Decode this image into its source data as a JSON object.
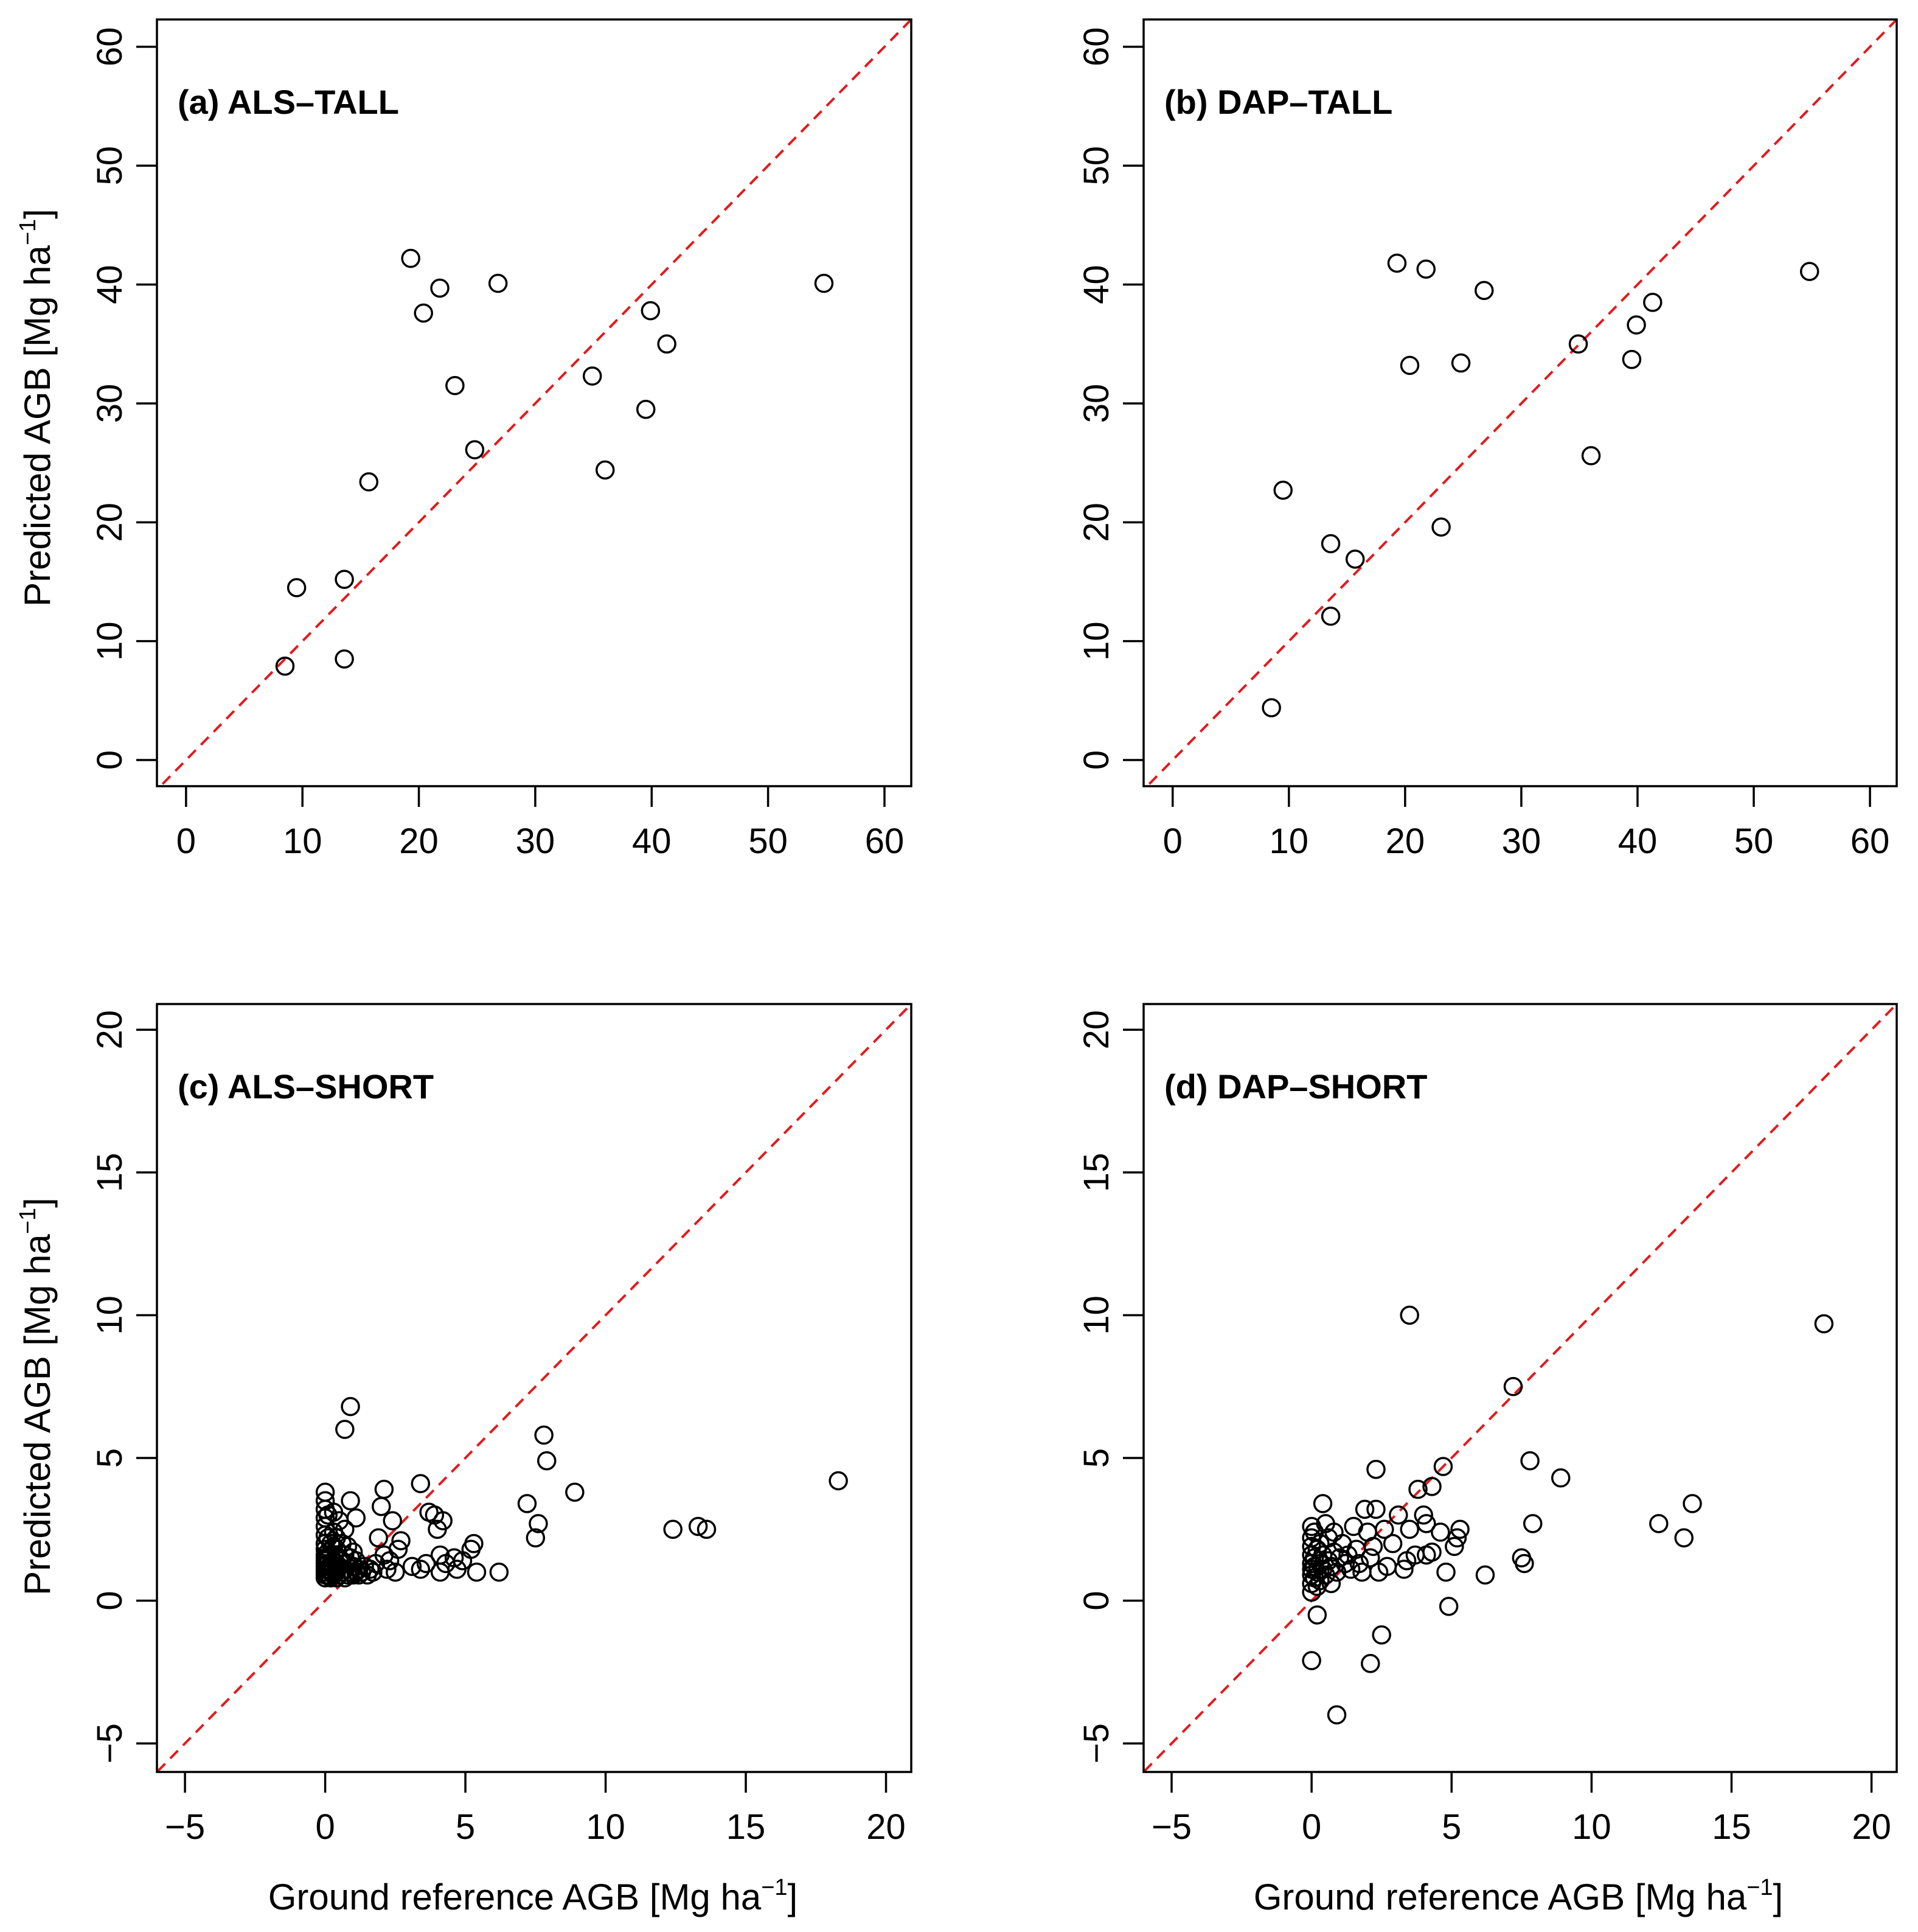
{
  "chart_data": [
    {
      "id": "a",
      "type": "scatter",
      "title": "(a) ALS–TALL",
      "xlim": [
        -2.5,
        62.3
      ],
      "ylim": [
        -2.2,
        62.3
      ],
      "xticks": [
        0,
        10,
        20,
        30,
        40,
        50,
        60
      ],
      "yticks": [
        0,
        10,
        20,
        30,
        40,
        50,
        60
      ],
      "reference_line": "1:1",
      "points": [
        [
          8.5,
          7.9
        ],
        [
          9.5,
          14.5
        ],
        [
          13.6,
          15.2
        ],
        [
          13.6,
          8.5
        ],
        [
          15.7,
          23.4
        ],
        [
          19.3,
          42.2
        ],
        [
          20.4,
          37.6
        ],
        [
          21.8,
          39.7
        ],
        [
          23.1,
          31.5
        ],
        [
          24.8,
          26.1
        ],
        [
          26.8,
          40.1
        ],
        [
          34.9,
          32.3
        ],
        [
          36.0,
          24.4
        ],
        [
          39.5,
          29.5
        ],
        [
          39.9,
          37.8
        ],
        [
          41.3,
          35.0
        ],
        [
          54.8,
          40.1
        ]
      ]
    },
    {
      "id": "b",
      "type": "scatter",
      "title": "(b) DAP–TALL",
      "xlim": [
        -2.5,
        62.3
      ],
      "ylim": [
        -2.2,
        62.3
      ],
      "xticks": [
        0,
        10,
        20,
        30,
        40,
        50,
        60
      ],
      "yticks": [
        0,
        10,
        20,
        30,
        40,
        50,
        60
      ],
      "reference_line": "1:1",
      "points": [
        [
          8.5,
          4.4
        ],
        [
          9.5,
          22.7
        ],
        [
          13.6,
          18.2
        ],
        [
          13.6,
          12.1
        ],
        [
          15.7,
          16.9
        ],
        [
          19.3,
          41.8
        ],
        [
          20.4,
          33.2
        ],
        [
          21.8,
          41.3
        ],
        [
          23.1,
          19.6
        ],
        [
          24.8,
          33.4
        ],
        [
          26.8,
          39.5
        ],
        [
          34.9,
          35.0
        ],
        [
          36.0,
          25.6
        ],
        [
          39.5,
          33.7
        ],
        [
          39.9,
          36.6
        ],
        [
          41.3,
          38.5
        ],
        [
          54.8,
          41.1
        ]
      ]
    },
    {
      "id": "c",
      "type": "scatter",
      "title": "(c) ALS–SHORT",
      "xlim": [
        -6.0,
        20.9
      ],
      "ylim": [
        -6.0,
        20.9
      ],
      "xticks": [
        -5,
        0,
        5,
        10,
        15,
        20
      ],
      "yticks": [
        -5,
        0,
        5,
        10,
        15,
        20
      ],
      "xlabel": "Ground reference AGB [Mg ha",
      "xlabel_sup": "−1",
      "xlabel_end": "]",
      "reference_line": "1:1",
      "points": [
        [
          0.0,
          0.8
        ],
        [
          0.0,
          0.9
        ],
        [
          0.0,
          1.0
        ],
        [
          0.0,
          1.1
        ],
        [
          0.0,
          1.2
        ],
        [
          0.0,
          1.3
        ],
        [
          0.0,
          1.4
        ],
        [
          0.0,
          1.5
        ],
        [
          0.0,
          1.6
        ],
        [
          0.0,
          1.8
        ],
        [
          0.0,
          2.0
        ],
        [
          0.0,
          2.3
        ],
        [
          0.0,
          2.6
        ],
        [
          0.0,
          2.9
        ],
        [
          0.0,
          3.2
        ],
        [
          0.0,
          3.5
        ],
        [
          0.0,
          3.8
        ],
        [
          0.1,
          0.9
        ],
        [
          0.1,
          1.1
        ],
        [
          0.1,
          1.3
        ],
        [
          0.1,
          1.5
        ],
        [
          0.1,
          1.7
        ],
        [
          0.1,
          2.2
        ],
        [
          0.1,
          3.0
        ],
        [
          0.2,
          0.8
        ],
        [
          0.2,
          1.0
        ],
        [
          0.2,
          1.2
        ],
        [
          0.2,
          1.6
        ],
        [
          0.2,
          2.0
        ],
        [
          0.3,
          0.9
        ],
        [
          0.3,
          1.1
        ],
        [
          0.3,
          1.4
        ],
        [
          0.3,
          1.9
        ],
        [
          0.3,
          2.4
        ],
        [
          0.3,
          3.1
        ],
        [
          0.4,
          0.8
        ],
        [
          0.4,
          1.0
        ],
        [
          0.4,
          1.3
        ],
        [
          0.4,
          1.8
        ],
        [
          0.4,
          2.2
        ],
        [
          0.5,
          0.9
        ],
        [
          0.5,
          1.2
        ],
        [
          0.5,
          1.5
        ],
        [
          0.5,
          2.8
        ],
        [
          0.6,
          1.0
        ],
        [
          0.6,
          1.4
        ],
        [
          0.6,
          2.0
        ],
        [
          0.7,
          0.8
        ],
        [
          0.7,
          1.1
        ],
        [
          0.7,
          1.6
        ],
        [
          0.7,
          2.5
        ],
        [
          0.7,
          6.0
        ],
        [
          0.8,
          0.9
        ],
        [
          0.8,
          1.3
        ],
        [
          0.8,
          1.9
        ],
        [
          0.9,
          1.0
        ],
        [
          0.9,
          1.5
        ],
        [
          0.9,
          3.5
        ],
        [
          0.9,
          6.8
        ],
        [
          1.0,
          0.9
        ],
        [
          1.0,
          1.2
        ],
        [
          1.0,
          1.7
        ],
        [
          1.1,
          1.0
        ],
        [
          1.1,
          1.4
        ],
        [
          1.1,
          2.9
        ],
        [
          1.2,
          0.9
        ],
        [
          1.2,
          1.1
        ],
        [
          1.3,
          1.0
        ],
        [
          1.4,
          1.2
        ],
        [
          1.5,
          0.9
        ],
        [
          1.6,
          1.1
        ],
        [
          1.7,
          1.0
        ],
        [
          1.8,
          1.3
        ],
        [
          1.9,
          2.2
        ],
        [
          2.0,
          3.3
        ],
        [
          2.1,
          1.6
        ],
        [
          2.1,
          3.9
        ],
        [
          2.2,
          1.1
        ],
        [
          2.3,
          1.4
        ],
        [
          2.4,
          2.8
        ],
        [
          2.5,
          1.0
        ],
        [
          2.6,
          1.8
        ],
        [
          2.7,
          2.1
        ],
        [
          3.1,
          1.2
        ],
        [
          3.4,
          1.1
        ],
        [
          3.4,
          4.1
        ],
        [
          3.6,
          1.3
        ],
        [
          3.7,
          3.1
        ],
        [
          3.9,
          3.0
        ],
        [
          4.0,
          2.5
        ],
        [
          4.1,
          1.6
        ],
        [
          4.1,
          1.0
        ],
        [
          4.2,
          2.8
        ],
        [
          4.3,
          1.3
        ],
        [
          4.6,
          1.5
        ],
        [
          4.7,
          1.1
        ],
        [
          4.9,
          1.4
        ],
        [
          5.2,
          1.8
        ],
        [
          5.3,
          2.0
        ],
        [
          5.4,
          1.0
        ],
        [
          6.2,
          1.0
        ],
        [
          7.2,
          3.4
        ],
        [
          7.5,
          2.2
        ],
        [
          7.6,
          2.7
        ],
        [
          7.8,
          5.8
        ],
        [
          7.9,
          4.9
        ],
        [
          8.9,
          3.8
        ],
        [
          12.4,
          2.5
        ],
        [
          13.3,
          2.6
        ],
        [
          13.6,
          2.5
        ],
        [
          18.3,
          4.2
        ]
      ]
    },
    {
      "id": "d",
      "type": "scatter",
      "title": "(d) DAP–SHORT",
      "xlim": [
        -6.0,
        20.9
      ],
      "ylim": [
        -6.0,
        20.9
      ],
      "xticks": [
        -5,
        0,
        5,
        10,
        15,
        20
      ],
      "yticks": [
        -5,
        0,
        5,
        10,
        15,
        20
      ],
      "xlabel": "Ground reference AGB [Mg ha",
      "xlabel_sup": "−1",
      "xlabel_end": "]",
      "reference_line": "1:1",
      "points": [
        [
          0.0,
          0.3
        ],
        [
          0.0,
          0.6
        ],
        [
          0.0,
          0.9
        ],
        [
          0.0,
          1.1
        ],
        [
          0.0,
          1.3
        ],
        [
          0.0,
          1.6
        ],
        [
          0.0,
          1.9
        ],
        [
          0.0,
          2.2
        ],
        [
          0.0,
          2.6
        ],
        [
          0.0,
          -2.1
        ],
        [
          0.1,
          0.8
        ],
        [
          0.1,
          1.2
        ],
        [
          0.1,
          1.5
        ],
        [
          0.1,
          2.4
        ],
        [
          0.2,
          0.5
        ],
        [
          0.2,
          1.0
        ],
        [
          0.2,
          1.8
        ],
        [
          0.2,
          -0.5
        ],
        [
          0.3,
          0.7
        ],
        [
          0.3,
          1.3
        ],
        [
          0.3,
          2.0
        ],
        [
          0.4,
          1.1
        ],
        [
          0.4,
          1.6
        ],
        [
          0.4,
          3.4
        ],
        [
          0.5,
          0.9
        ],
        [
          0.5,
          2.7
        ],
        [
          0.6,
          1.4
        ],
        [
          0.6,
          2.2
        ],
        [
          0.7,
          0.6
        ],
        [
          0.7,
          1.2
        ],
        [
          0.8,
          1.7
        ],
        [
          0.8,
          2.4
        ],
        [
          0.9,
          1.0
        ],
        [
          0.9,
          -4.0
        ],
        [
          1.0,
          1.5
        ],
        [
          1.1,
          2.0
        ],
        [
          1.2,
          1.3
        ],
        [
          1.3,
          1.6
        ],
        [
          1.4,
          1.1
        ],
        [
          1.5,
          2.6
        ],
        [
          1.6,
          1.8
        ],
        [
          1.7,
          1.3
        ],
        [
          1.8,
          1.0
        ],
        [
          1.9,
          3.2
        ],
        [
          2.0,
          2.4
        ],
        [
          2.1,
          1.5
        ],
        [
          2.1,
          -2.2
        ],
        [
          2.2,
          1.9
        ],
        [
          2.3,
          4.6
        ],
        [
          2.3,
          3.2
        ],
        [
          2.4,
          1.0
        ],
        [
          2.5,
          -1.2
        ],
        [
          2.6,
          2.5
        ],
        [
          2.7,
          1.2
        ],
        [
          2.9,
          2.0
        ],
        [
          3.1,
          3.0
        ],
        [
          3.3,
          1.1
        ],
        [
          3.4,
          1.4
        ],
        [
          3.5,
          10.0
        ],
        [
          3.5,
          2.5
        ],
        [
          3.7,
          1.6
        ],
        [
          3.8,
          3.9
        ],
        [
          4.0,
          3.0
        ],
        [
          4.1,
          2.7
        ],
        [
          4.1,
          1.6
        ],
        [
          4.3,
          4.0
        ],
        [
          4.3,
          1.7
        ],
        [
          4.6,
          2.4
        ],
        [
          4.7,
          4.7
        ],
        [
          4.8,
          1.0
        ],
        [
          4.9,
          -0.2
        ],
        [
          5.1,
          1.9
        ],
        [
          5.2,
          2.2
        ],
        [
          5.3,
          2.5
        ],
        [
          6.2,
          0.9
        ],
        [
          7.2,
          7.5
        ],
        [
          7.5,
          1.5
        ],
        [
          7.6,
          1.3
        ],
        [
          7.8,
          4.9
        ],
        [
          7.9,
          2.7
        ],
        [
          8.9,
          4.3
        ],
        [
          12.4,
          2.7
        ],
        [
          13.3,
          2.2
        ],
        [
          13.6,
          3.4
        ],
        [
          18.3,
          9.7
        ]
      ]
    }
  ],
  "ylabel": "Predicted AGB [Mg ha",
  "ylabel_sup": "−1",
  "ylabel_end": "]"
}
